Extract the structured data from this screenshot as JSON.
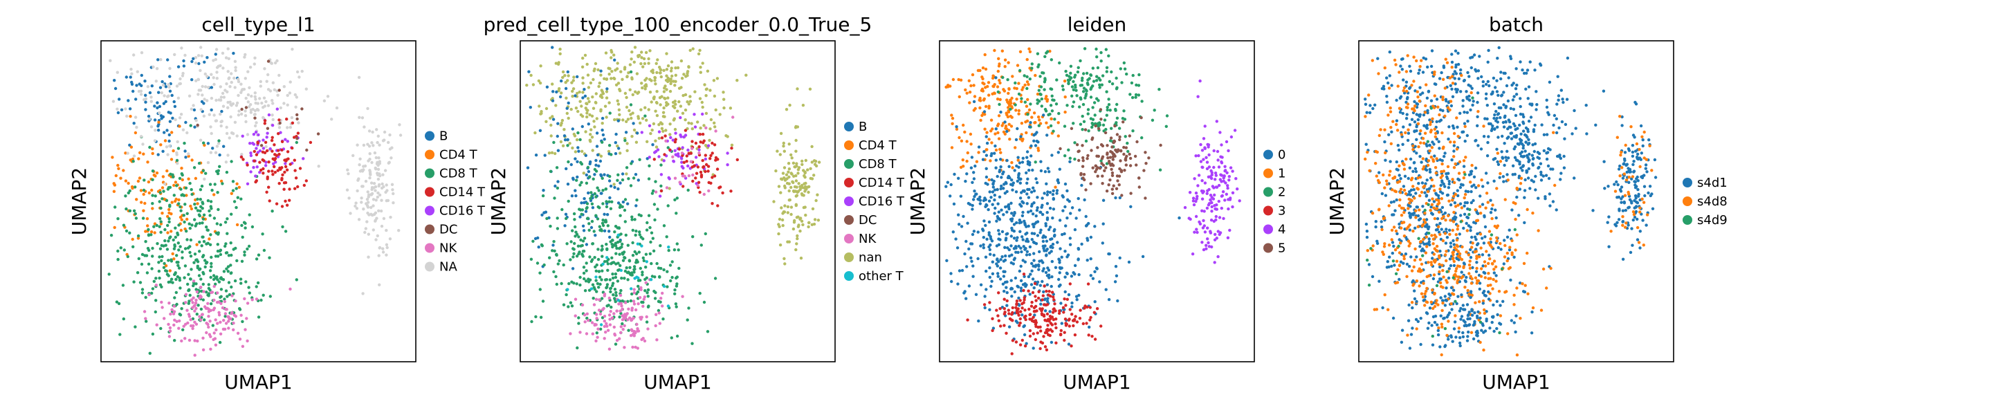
{
  "chart_data": [
    {
      "type": "scatter",
      "title": "cell_type_l1",
      "xlabel": "UMAP1",
      "ylabel": "UMAP2",
      "grid": false,
      "legend_position": "right",
      "legend": [
        {
          "label": "B",
          "color": "#1f77b4"
        },
        {
          "label": "CD4 T",
          "color": "#ff7f0e"
        },
        {
          "label": "CD8 T",
          "color": "#279e68"
        },
        {
          "label": "CD14 T",
          "color": "#d62728"
        },
        {
          "label": "CD16 T",
          "color": "#aa40fc"
        },
        {
          "label": "DC",
          "color": "#8c564b"
        },
        {
          "label": "NK",
          "color": "#e377c2"
        },
        {
          "label": "NA",
          "color": "#d3d3d3"
        }
      ]
    },
    {
      "type": "scatter",
      "title": "pred_cell_type_100_encoder_0.0_True_5",
      "xlabel": "UMAP1",
      "ylabel": "UMAP2",
      "grid": false,
      "legend_position": "right",
      "legend": [
        {
          "label": "B",
          "color": "#1f77b4"
        },
        {
          "label": "CD4 T",
          "color": "#ff7f0e"
        },
        {
          "label": "CD8 T",
          "color": "#279e68"
        },
        {
          "label": "CD14 T",
          "color": "#d62728"
        },
        {
          "label": "CD16 T",
          "color": "#aa40fc"
        },
        {
          "label": "DC",
          "color": "#8c564b"
        },
        {
          "label": "NK",
          "color": "#e377c2"
        },
        {
          "label": "nan",
          "color": "#b5bd61"
        },
        {
          "label": "other T",
          "color": "#17becf"
        }
      ]
    },
    {
      "type": "scatter",
      "title": "leiden",
      "xlabel": "UMAP1",
      "ylabel": "UMAP2",
      "grid": false,
      "legend_position": "right",
      "legend": [
        {
          "label": "0",
          "color": "#1f77b4"
        },
        {
          "label": "1",
          "color": "#ff7f0e"
        },
        {
          "label": "2",
          "color": "#279e68"
        },
        {
          "label": "3",
          "color": "#d62728"
        },
        {
          "label": "4",
          "color": "#aa40fc"
        },
        {
          "label": "5",
          "color": "#8c564b"
        }
      ]
    },
    {
      "type": "scatter",
      "title": "batch",
      "xlabel": "UMAP1",
      "ylabel": "UMAP2",
      "grid": false,
      "legend_position": "right",
      "legend": [
        {
          "label": "s4d1",
          "color": "#1f77b4"
        },
        {
          "label": "s4d8",
          "color": "#ff7f0e"
        },
        {
          "label": "s4d9",
          "color": "#279e68"
        }
      ]
    }
  ]
}
